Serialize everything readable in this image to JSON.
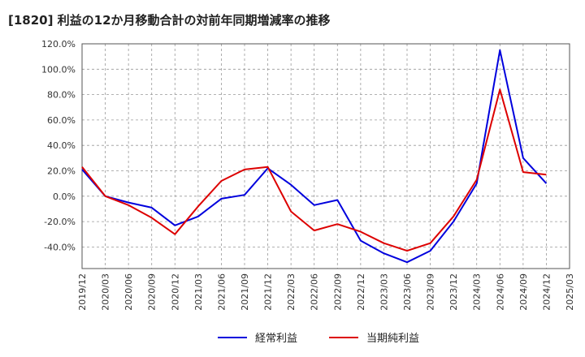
{
  "chart_data": {
    "type": "line",
    "title": "[1820]  利益の12か月移動合計の対前年同期増減率の推移",
    "x": [
      "2019/12",
      "2020/03",
      "2020/06",
      "2020/09",
      "2020/12",
      "2021/03",
      "2021/06",
      "2021/09",
      "2021/12",
      "2022/03",
      "2022/06",
      "2022/09",
      "2022/12",
      "2023/03",
      "2023/06",
      "2023/09",
      "2023/12",
      "2024/03",
      "2024/06",
      "2024/09",
      "2024/12"
    ],
    "x_ticks": [
      "2019/12",
      "2020/03",
      "2020/06",
      "2020/09",
      "2020/12",
      "2021/03",
      "2021/06",
      "2021/09",
      "2021/12",
      "2022/03",
      "2022/06",
      "2022/09",
      "2022/12",
      "2023/03",
      "2023/06",
      "2023/09",
      "2023/12",
      "2024/03",
      "2024/06",
      "2024/09",
      "2024/12",
      "2025/03"
    ],
    "y_ticks": [
      "120.0%",
      "100.0%",
      "80.0%",
      "60.0%",
      "40.0%",
      "20.0%",
      "0.0%",
      "-20.0%",
      "-40.0%"
    ],
    "ylim": [
      -57,
      120
    ],
    "grid": true,
    "legend_position": "bottom",
    "series": [
      {
        "name": "経常利益",
        "color": "#0000dd",
        "values": [
          21,
          0,
          -5,
          -9,
          -23,
          -16,
          -2,
          1,
          22,
          9,
          -7,
          -3,
          -35,
          -45,
          -52,
          -43,
          -20,
          10,
          115,
          30,
          10
        ]
      },
      {
        "name": "当期純利益",
        "color": "#dd0000",
        "values": [
          23,
          0,
          -7,
          -17,
          -30,
          -8,
          12,
          21,
          23,
          -12,
          -27,
          -22,
          -28,
          -37,
          -43,
          -37,
          -16,
          13,
          84,
          19,
          17
        ]
      }
    ]
  }
}
